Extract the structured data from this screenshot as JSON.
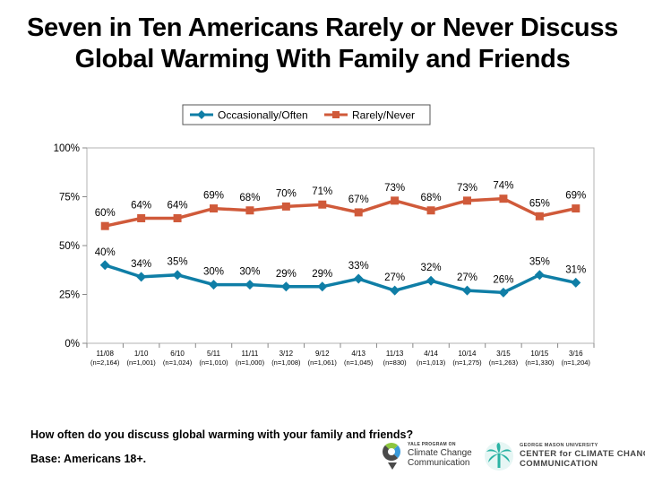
{
  "title_line1": "Seven in Ten Americans Rarely or Never Discuss",
  "title_line2": "Global Warming With Family and Friends",
  "question": "How often do you discuss global warming with your family and friends?",
  "base": "Base: Americans 18+.",
  "logos": {
    "yale_small": "YALE PROGRAM ON",
    "yale_line1": "Climate Change",
    "yale_line2": "Communication",
    "gmu_small": "GEORGE MASON UNIVERSITY",
    "gmu_line1": "CENTER for CLIMATE CHANGE",
    "gmu_line2": "COMMUNICATION"
  },
  "chart_data": {
    "type": "line",
    "categories": [
      "11/08",
      "1/10",
      "6/10",
      "5/11",
      "11/11",
      "3/12",
      "9/12",
      "4/13",
      "11/13",
      "4/14",
      "10/14",
      "3/15",
      "10/15",
      "3/16"
    ],
    "category_sublabels": [
      "(n=2,164)",
      "(n=1,001)",
      "(n=1,024)",
      "(n=1,010)",
      "(n=1,000)",
      "(n=1,008)",
      "(n=1,061)",
      "(n=1,045)",
      "(n=830)",
      "(n=1,013)",
      "(n=1,275)",
      "(n=1,263)",
      "(n=1,330)",
      "(n=1,204)"
    ],
    "y_ticks": [
      0,
      25,
      50,
      75,
      100
    ],
    "y_tick_labels": [
      "0%",
      "25%",
      "50%",
      "75%",
      "100%"
    ],
    "ylim": [
      0,
      100
    ],
    "legend_position": "top-center",
    "series": [
      {
        "name": "Occasionally/Often",
        "color": "#0f7ea6",
        "marker": "diamond",
        "values": [
          40,
          34,
          35,
          30,
          30,
          29,
          29,
          33,
          27,
          32,
          27,
          26,
          35,
          31
        ],
        "labels": [
          "40%",
          "34%",
          "35%",
          "30%",
          "30%",
          "29%",
          "29%",
          "33%",
          "27%",
          "32%",
          "27%",
          "26%",
          "35%",
          "31%"
        ]
      },
      {
        "name": "Rarely/Never",
        "color": "#d05a3a",
        "marker": "square",
        "values": [
          60,
          64,
          64,
          69,
          68,
          70,
          71,
          67,
          73,
          68,
          73,
          74,
          65,
          69
        ],
        "labels": [
          "60%",
          "64%",
          "64%",
          "69%",
          "68%",
          "70%",
          "71%",
          "67%",
          "73%",
          "68%",
          "73%",
          "74%",
          "65%",
          "69%"
        ]
      }
    ]
  }
}
